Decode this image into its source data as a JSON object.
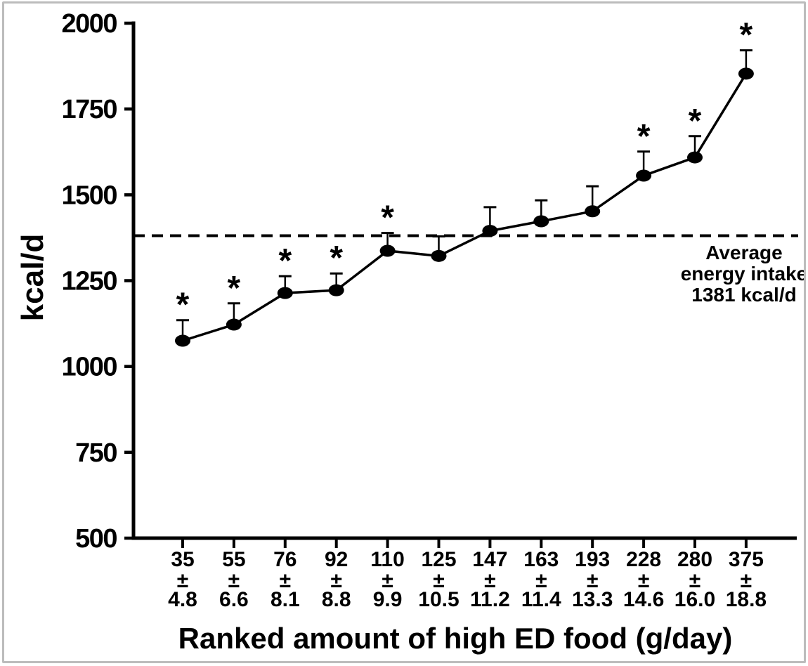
{
  "figure": {
    "background": "#ffffff",
    "border_color": "#bcbcbc",
    "ink_color": "#000000"
  },
  "chart_data": {
    "type": "line",
    "title": "",
    "ylabel": "kcal/d",
    "xlabel": "Ranked amount of high ED food (g/day)",
    "ylim": [
      500,
      2000
    ],
    "yticks": [
      500,
      750,
      1000,
      1250,
      1500,
      1750,
      2000
    ],
    "grid": false,
    "legend": false,
    "significance_symbol": "*",
    "x_tick_labels": [
      {
        "amount": "35",
        "pm": "±",
        "se": "4.8"
      },
      {
        "amount": "55",
        "pm": "±",
        "se": "6.6"
      },
      {
        "amount": "76",
        "pm": "±",
        "se": "8.1"
      },
      {
        "amount": "92",
        "pm": "±",
        "se": "8.8"
      },
      {
        "amount": "110",
        "pm": "±",
        "se": "9.9"
      },
      {
        "amount": "125",
        "pm": "±",
        "se": "10.5"
      },
      {
        "amount": "147",
        "pm": "±",
        "se": "11.2"
      },
      {
        "amount": "163",
        "pm": "±",
        "se": "11.4"
      },
      {
        "amount": "193",
        "pm": "±",
        "se": "13.3"
      },
      {
        "amount": "228",
        "pm": "±",
        "se": "14.6"
      },
      {
        "amount": "280",
        "pm": "±",
        "se": "16.0"
      },
      {
        "amount": "375",
        "pm": "±",
        "se": "18.8"
      }
    ],
    "series": [
      {
        "marker": "filled-ellipse",
        "color": "#000000",
        "values": [
          1075,
          1122,
          1214,
          1222,
          1337,
          1322,
          1395,
          1423,
          1452,
          1556,
          1609,
          1853
        ],
        "upper_error": [
          60,
          62,
          49,
          49,
          52,
          57,
          69,
          61,
          73,
          70,
          62,
          68
        ],
        "significant": [
          true,
          true,
          true,
          true,
          true,
          false,
          false,
          false,
          false,
          true,
          true,
          true
        ]
      }
    ],
    "reference_line": {
      "value": 1381,
      "style": "dashed",
      "label_lines": [
        "Average",
        "energy intake",
        "1381 kcal/d"
      ]
    }
  }
}
